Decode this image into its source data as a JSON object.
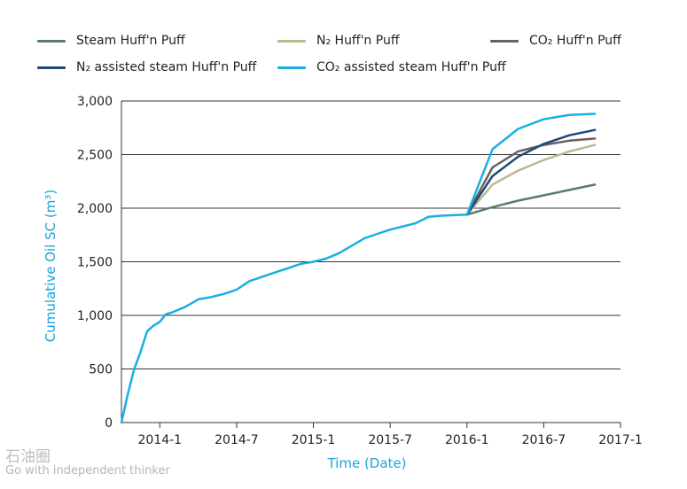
{
  "colors": {
    "steam": "#5b7a72",
    "n2": "#bcb98c",
    "co2": "#6b5e5e",
    "n2_assisted": "#1c4a78",
    "co2_assisted": "#1aaee5",
    "axis_label": "#1aa3dd",
    "grid": "#333333"
  },
  "legend": [
    {
      "key": "steam",
      "label": "Steam Huff'n Puff"
    },
    {
      "key": "n2",
      "label": "N₂ Huff'n Puff"
    },
    {
      "key": "co2",
      "label": "CO₂ Huff'n Puff"
    },
    {
      "key": "n2_assisted",
      "label": "N₂ assisted steam Huff'n Puff"
    },
    {
      "key": "co2_assisted",
      "label": "CO₂ assisted steam Huff'n Puff"
    }
  ],
  "watermark": {
    "logo_text": "石油圈",
    "tagline": "Go with independent thinker"
  },
  "chart_data": {
    "type": "line",
    "xlabel": "Time (Date)",
    "ylabel": "Cumulative Oil SC (m³)",
    "x_ticks": [
      "2014-1",
      "2014-7",
      "2015-1",
      "2015-7",
      "2016-1",
      "2016-7",
      "2017-1"
    ],
    "x_range": [
      "2013-10",
      "2017-1"
    ],
    "ylim": [
      0,
      3000
    ],
    "y_ticks": [
      "0",
      "500",
      "1,000",
      "1,500",
      "2,000",
      "2,500",
      "3,000"
    ],
    "y_tick_values": [
      0,
      500,
      1000,
      1500,
      2000,
      2500,
      3000
    ],
    "grid": "horizontal",
    "legend_position": "top",
    "history": {
      "name": "CO₂ assisted steam Huff'n Puff",
      "x": [
        "2013-10",
        "2013-10-15",
        "2013-11",
        "2013-11-15",
        "2013-12",
        "2013-12-15",
        "2014-1",
        "2014-1-15",
        "2014-2",
        "2014-3",
        "2014-4",
        "2014-5",
        "2014-6",
        "2014-7",
        "2014-8",
        "2014-9",
        "2014-10",
        "2014-11",
        "2014-12",
        "2015-1",
        "2015-2",
        "2015-3",
        "2015-4",
        "2015-5",
        "2015-6",
        "2015-7",
        "2015-8",
        "2015-9",
        "2015-10",
        "2015-11",
        "2015-12",
        "2016-1"
      ],
      "y": [
        0,
        250,
        500,
        650,
        850,
        900,
        940,
        1010,
        1030,
        1080,
        1150,
        1170,
        1200,
        1240,
        1320,
        1360,
        1400,
        1440,
        1480,
        1500,
        1530,
        1580,
        1650,
        1720,
        1760,
        1800,
        1830,
        1860,
        1920,
        1930,
        1935,
        1940
      ]
    },
    "series": [
      {
        "key": "steam",
        "name": "Steam Huff'n Puff",
        "x": [
          "2016-1",
          "2016-3",
          "2016-5",
          "2016-7",
          "2016-9",
          "2016-11"
        ],
        "y": [
          1940,
          2010,
          2070,
          2120,
          2170,
          2220
        ]
      },
      {
        "key": "n2",
        "name": "N₂ Huff'n Puff",
        "x": [
          "2016-1",
          "2016-3",
          "2016-5",
          "2016-7",
          "2016-9",
          "2016-11"
        ],
        "y": [
          1940,
          2220,
          2350,
          2450,
          2530,
          2590
        ]
      },
      {
        "key": "co2",
        "name": "CO₂ Huff'n Puff",
        "x": [
          "2016-1",
          "2016-3",
          "2016-5",
          "2016-7",
          "2016-9",
          "2016-11"
        ],
        "y": [
          1940,
          2380,
          2530,
          2590,
          2630,
          2650
        ]
      },
      {
        "key": "n2_assisted",
        "name": "N₂ assisted steam Huff'n Puff",
        "x": [
          "2016-1",
          "2016-3",
          "2016-5",
          "2016-7",
          "2016-9",
          "2016-11"
        ],
        "y": [
          1940,
          2300,
          2480,
          2600,
          2680,
          2730
        ]
      },
      {
        "key": "co2_assisted",
        "name": "CO₂ assisted steam Huff'n Puff",
        "x": [
          "2016-1",
          "2016-3",
          "2016-5",
          "2016-7",
          "2016-9",
          "2016-11"
        ],
        "y": [
          1940,
          2550,
          2740,
          2830,
          2870,
          2880
        ]
      }
    ]
  }
}
